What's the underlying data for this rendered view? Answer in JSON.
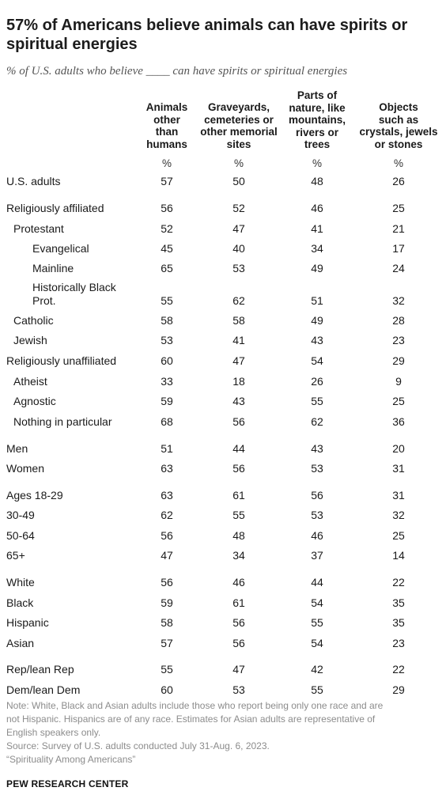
{
  "title": "57% of Americans believe animals can have spirits or spiritual energies",
  "subtitle": "% of U.S. adults who believe ____ can have spirits or spiritual energies",
  "chart_data": {
    "type": "table",
    "columns": [
      {
        "lines": [
          "Animals",
          "other",
          "than",
          "humans"
        ]
      },
      {
        "lines": [
          "Graveyards,",
          "cemeteries or",
          "other memorial",
          "sites"
        ]
      },
      {
        "lines": [
          "Parts of",
          "nature, like",
          "mountains,",
          "rivers or",
          "trees"
        ]
      },
      {
        "lines": [
          "Objects",
          "such as",
          "crystals, jewels",
          "or stones"
        ]
      }
    ],
    "unit_row": [
      "%",
      "%",
      "%",
      "%"
    ],
    "rows": [
      {
        "lines": [
          "U.S. adults"
        ],
        "indent": 0,
        "values": [
          57,
          50,
          48,
          26
        ]
      },
      {
        "lines": [
          "Religiously affiliated"
        ],
        "indent": 0,
        "values": [
          56,
          52,
          46,
          25
        ]
      },
      {
        "lines": [
          "Protestant"
        ],
        "indent": 1,
        "values": [
          52,
          47,
          41,
          21
        ]
      },
      {
        "lines": [
          "Evangelical"
        ],
        "indent": 2,
        "values": [
          45,
          40,
          34,
          17
        ]
      },
      {
        "lines": [
          "Mainline"
        ],
        "indent": 2,
        "values": [
          65,
          53,
          49,
          24
        ]
      },
      {
        "lines": [
          "Historically Black",
          "Prot."
        ],
        "indent": 2,
        "values": [
          55,
          62,
          51,
          32
        ]
      },
      {
        "lines": [
          "Catholic"
        ],
        "indent": 1,
        "values": [
          58,
          58,
          49,
          28
        ]
      },
      {
        "lines": [
          "Jewish"
        ],
        "indent": 1,
        "values": [
          53,
          41,
          43,
          23
        ]
      },
      {
        "lines": [
          "Religiously unaffiliated"
        ],
        "indent": 0,
        "values": [
          60,
          47,
          54,
          29
        ]
      },
      {
        "lines": [
          "Atheist"
        ],
        "indent": 1,
        "values": [
          33,
          18,
          26,
          9
        ]
      },
      {
        "lines": [
          "Agnostic"
        ],
        "indent": 1,
        "values": [
          59,
          43,
          55,
          25
        ]
      },
      {
        "lines": [
          "Nothing in particular"
        ],
        "indent": 1,
        "values": [
          68,
          56,
          62,
          36
        ]
      },
      {
        "lines": [
          "Men"
        ],
        "indent": 0,
        "values": [
          51,
          44,
          43,
          20
        ]
      },
      {
        "lines": [
          "Women"
        ],
        "indent": 0,
        "values": [
          63,
          56,
          53,
          31
        ]
      },
      {
        "lines": [
          "Ages 18-29"
        ],
        "indent": 0,
        "values": [
          63,
          61,
          56,
          31
        ]
      },
      {
        "lines": [
          "30-49"
        ],
        "indent": 0,
        "values": [
          62,
          55,
          53,
          32
        ]
      },
      {
        "lines": [
          "50-64"
        ],
        "indent": 0,
        "values": [
          56,
          48,
          46,
          25
        ]
      },
      {
        "lines": [
          "65+"
        ],
        "indent": 0,
        "values": [
          47,
          34,
          37,
          14
        ]
      },
      {
        "lines": [
          "White"
        ],
        "indent": 0,
        "values": [
          56,
          46,
          44,
          22
        ]
      },
      {
        "lines": [
          "Black"
        ],
        "indent": 0,
        "values": [
          59,
          61,
          54,
          35
        ]
      },
      {
        "lines": [
          "Hispanic"
        ],
        "indent": 0,
        "values": [
          58,
          56,
          55,
          35
        ]
      },
      {
        "lines": [
          "Asian"
        ],
        "indent": 0,
        "values": [
          57,
          56,
          54,
          23
        ]
      },
      {
        "lines": [
          "Rep/lean Rep"
        ],
        "indent": 0,
        "values": [
          55,
          47,
          42,
          22
        ]
      },
      {
        "lines": [
          "Dem/lean Dem"
        ],
        "indent": 0,
        "values": [
          60,
          53,
          55,
          29
        ]
      }
    ]
  },
  "notes": {
    "lines": [
      "Note: White, Black and Asian adults include those who report being only one race and are",
      "not Hispanic. Hispanics are of any race. Estimates for Asian adults are representative of",
      "English speakers only.",
      "Source: Survey of U.S. adults conducted July 31-Aug. 6, 2023.",
      "“Spirituality Among Americans”"
    ]
  },
  "footer": "PEW RESEARCH CENTER"
}
